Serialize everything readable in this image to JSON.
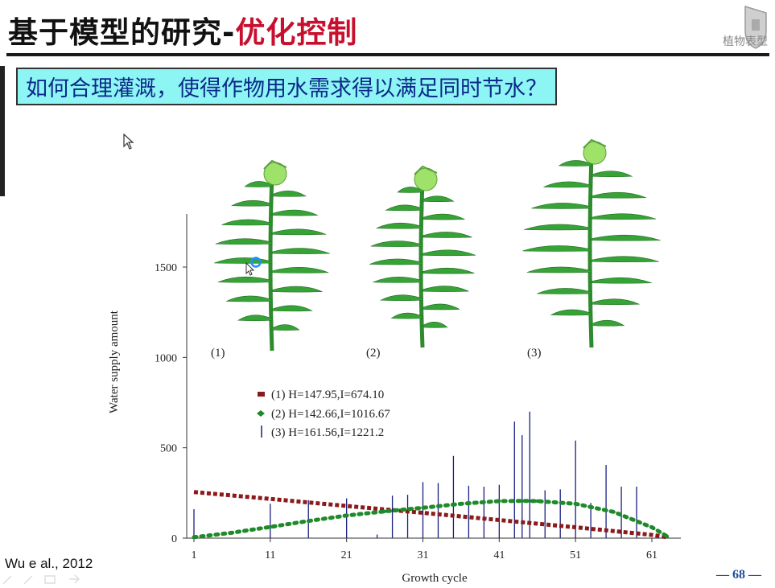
{
  "slide": {
    "title_black": "基于模型的研究-",
    "title_red": "优化控制",
    "question": "如何合理灌溉，使得作物用水需求得以满足同时节水？",
    "citation": "Wu e al., 2012",
    "page_number": "— 68 —",
    "logo_text": "植物表型",
    "colors": {
      "title_red": "#c8102e",
      "question_bg": "#8ef5f5",
      "question_text": "#0c2a8a",
      "page_number": "#1f4e9a"
    }
  },
  "plants": [
    {
      "label": "(1)"
    },
    {
      "label": "(2)"
    },
    {
      "label": "(3)"
    }
  ],
  "chart_data": {
    "type": "line",
    "xlabel": "Growth cycle",
    "ylabel": "Water supply amount",
    "xlim": [
      0,
      64
    ],
    "ylim": [
      0,
      1800
    ],
    "x_ticks": [
      "1",
      "11",
      "21",
      "31",
      "41",
      "51",
      "61"
    ],
    "y_ticks": [
      "0",
      "500",
      "1000",
      "1500"
    ],
    "legend_position": "center",
    "series": [
      {
        "name": "(1) H=147.95,I=674.10",
        "style": "dashed-squares",
        "color": "#8b1a1a",
        "x": [
          1,
          11,
          21,
          31,
          41,
          51,
          61,
          63
        ],
        "y": [
          255,
          217,
          178,
          140,
          100,
          60,
          18,
          5
        ]
      },
      {
        "name": "(2) H=142.66,I=1016.67",
        "style": "dotted-diamonds",
        "color": "#1f8a2a",
        "x": [
          1,
          6,
          11,
          16,
          21,
          26,
          31,
          36,
          41,
          44,
          46,
          51,
          56,
          61,
          63
        ],
        "y": [
          5,
          30,
          62,
          95,
          125,
          148,
          168,
          190,
          205,
          206,
          205,
          190,
          145,
          60,
          10
        ]
      },
      {
        "name": "(3) H=161.56,I=1221.2",
        "style": "vertical-bars",
        "color": "#1a1f80",
        "x": [
          1,
          11,
          16,
          21,
          25,
          27,
          29,
          31,
          33,
          35,
          37,
          39,
          41,
          43,
          44,
          45,
          47,
          49,
          51,
          53,
          55,
          57,
          59
        ],
        "y": [
          160,
          190,
          210,
          220,
          20,
          235,
          240,
          310,
          305,
          455,
          290,
          285,
          295,
          645,
          570,
          700,
          265,
          270,
          540,
          195,
          405,
          285,
          285
        ]
      }
    ]
  }
}
